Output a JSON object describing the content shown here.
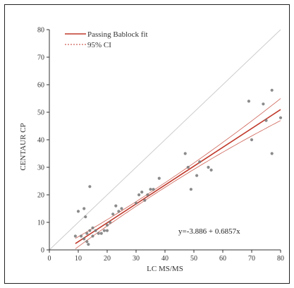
{
  "chart_data": {
    "type": "scatter",
    "xlabel": "LC MS/MS",
    "ylabel": "CENTAUR CP",
    "xlim": [
      0,
      80
    ],
    "ylim": [
      0,
      80
    ],
    "x_ticks": [
      "0",
      "10",
      "20",
      "30",
      "40",
      "50",
      "60",
      "70",
      "80"
    ],
    "y_ticks": [
      "0",
      "10",
      "20",
      "30",
      "40",
      "50",
      "60",
      "70",
      "80"
    ],
    "legend": {
      "position": "top-left",
      "entries": [
        {
          "label": "Passing Bablock fit",
          "style": "solid",
          "color": "#c0392b"
        },
        {
          "label": "95% CI",
          "style": "dashed",
          "color": "#c0392b"
        }
      ]
    },
    "annotation": "y=-3.886 + 0.6857x",
    "fit": {
      "intercept": -3.886,
      "slope": 0.6857
    },
    "identity_line": {
      "color": "#cccccc"
    },
    "points": [
      {
        "x": 9,
        "y": 5
      },
      {
        "x": 10,
        "y": 14
      },
      {
        "x": 11,
        "y": 5
      },
      {
        "x": 12,
        "y": 4
      },
      {
        "x": 12,
        "y": 15
      },
      {
        "x": 12.5,
        "y": 12
      },
      {
        "x": 13,
        "y": 3
      },
      {
        "x": 13,
        "y": 6
      },
      {
        "x": 13.5,
        "y": 2
      },
      {
        "x": 14,
        "y": 23
      },
      {
        "x": 14,
        "y": 7
      },
      {
        "x": 15,
        "y": 5
      },
      {
        "x": 15,
        "y": 8
      },
      {
        "x": 16,
        "y": 7
      },
      {
        "x": 17,
        "y": 6
      },
      {
        "x": 18,
        "y": 6
      },
      {
        "x": 19,
        "y": 7
      },
      {
        "x": 20,
        "y": 9
      },
      {
        "x": 20,
        "y": 7
      },
      {
        "x": 21,
        "y": 10
      },
      {
        "x": 22,
        "y": 13
      },
      {
        "x": 23,
        "y": 16
      },
      {
        "x": 24,
        "y": 14
      },
      {
        "x": 25,
        "y": 15
      },
      {
        "x": 30,
        "y": 17
      },
      {
        "x": 31,
        "y": 20
      },
      {
        "x": 32,
        "y": 21
      },
      {
        "x": 33,
        "y": 18
      },
      {
        "x": 34,
        "y": 20
      },
      {
        "x": 35,
        "y": 22
      },
      {
        "x": 36,
        "y": 22
      },
      {
        "x": 38,
        "y": 26
      },
      {
        "x": 47,
        "y": 35
      },
      {
        "x": 48,
        "y": 30
      },
      {
        "x": 49,
        "y": 22
      },
      {
        "x": 51,
        "y": 27
      },
      {
        "x": 52,
        "y": 32
      },
      {
        "x": 55,
        "y": 30
      },
      {
        "x": 56,
        "y": 29
      },
      {
        "x": 69,
        "y": 54
      },
      {
        "x": 70,
        "y": 40
      },
      {
        "x": 74,
        "y": 53
      },
      {
        "x": 75,
        "y": 47
      },
      {
        "x": 77,
        "y": 58
      },
      {
        "x": 77,
        "y": 35
      },
      {
        "x": 80,
        "y": 48
      }
    ]
  }
}
